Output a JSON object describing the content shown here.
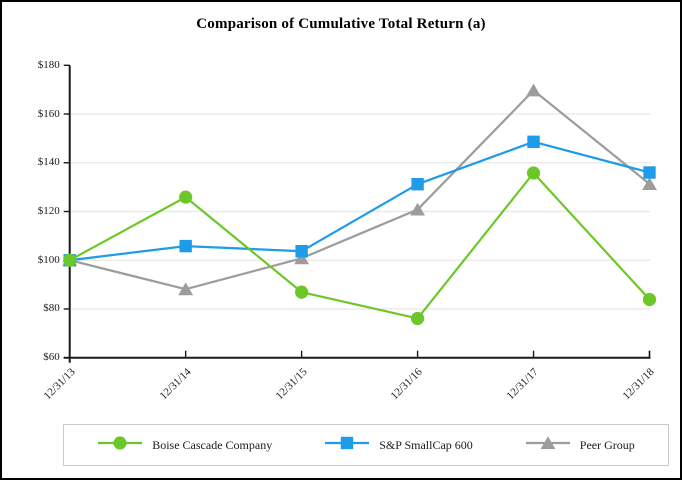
{
  "title": "Comparison of Cumulative Total Return (a)",
  "colors": {
    "boise_green": "#6CC828",
    "sp_blue": "#1E9BE9",
    "peer_gray": "#9C9C9C",
    "gridline": "#E8E8E8",
    "axis": "#1A1A1A",
    "legend_border": "#C9C9C9",
    "frame_border": "#000000"
  },
  "chart_data": {
    "type": "line",
    "title": "Comparison of Cumulative Total Return (a)",
    "x": [
      "12/31/13",
      "12/31/14",
      "12/31/15",
      "12/31/16",
      "12/31/17",
      "12/31/18"
    ],
    "series": [
      {
        "name": "Boise Cascade Company",
        "marker": "circle",
        "color": "#6CC828",
        "values": [
          100,
          125.9,
          86.9,
          76.1,
          135.8,
          83.9
        ]
      },
      {
        "name": "S&P SmallCap 600",
        "marker": "square",
        "color": "#1E9BE9",
        "values": [
          100,
          105.8,
          103.7,
          131.2,
          148.6,
          136.0
        ]
      },
      {
        "name": "Peer Group",
        "marker": "triangle",
        "color": "#9C9C9C",
        "values": [
          100,
          88.1,
          100.8,
          120.8,
          169.7,
          131.3
        ]
      }
    ],
    "yticks": [
      60,
      80,
      100,
      120,
      140,
      160,
      180
    ],
    "ytick_labels": [
      "$60",
      "$80",
      "$100",
      "$120",
      "$140",
      "$160",
      "$180"
    ],
    "ylim": [
      60,
      180
    ],
    "xlabel": "",
    "ylabel": "",
    "grid": "horizontal-only",
    "legend_position": "bottom"
  }
}
